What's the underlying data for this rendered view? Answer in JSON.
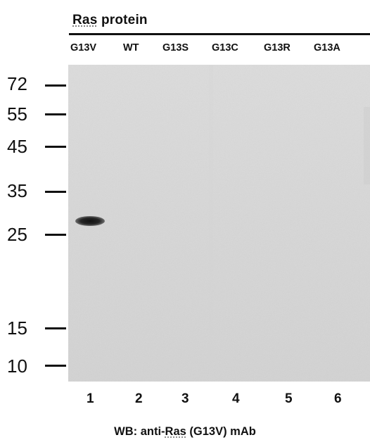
{
  "title": {
    "prefix": "Ras",
    "rest": " protein"
  },
  "lanes_top": [
    "G13V",
    "WT",
    "G13S",
    "G13C",
    "G13R",
    "G13A"
  ],
  "markers": [
    "72",
    "55",
    "45",
    "35",
    "25",
    "15",
    "10"
  ],
  "lane_numbers": [
    "1",
    "2",
    "3",
    "4",
    "5",
    "6"
  ],
  "caption": {
    "pre": "WB: anti-",
    "ras": "Ras",
    "post": " (G13V) mAb"
  },
  "colors": {
    "blot_bg": "#d8d8d8",
    "band": "#151515",
    "ink": "#111111"
  }
}
